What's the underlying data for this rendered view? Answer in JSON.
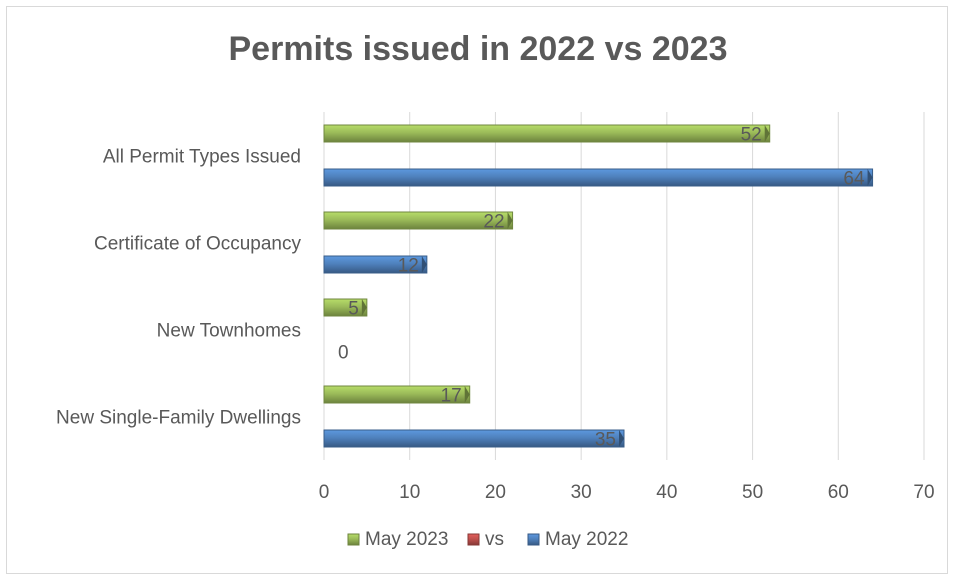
{
  "chart_data": {
    "type": "bar",
    "orientation": "horizontal",
    "title": "Permits issued in 2022 vs 2023",
    "categories": [
      "All Permit Types Issued",
      "Certificate of Occupancy",
      "New Townhomes",
      "New Single-Family Dwellings"
    ],
    "series": [
      {
        "name": "May 2023",
        "color": "#9bbb59",
        "values": [
          52,
          22,
          5,
          17
        ]
      },
      {
        "name": "vs",
        "color": "#c0504d",
        "values": [
          null,
          null,
          null,
          null
        ]
      },
      {
        "name": "May 2022",
        "color": "#4f81bd",
        "values": [
          64,
          12,
          0,
          35
        ]
      }
    ],
    "xlim": [
      0,
      70
    ],
    "xticks": [
      "0",
      "10",
      "20",
      "30",
      "40",
      "50",
      "60",
      "70"
    ],
    "grid": true,
    "legend_position": "bottom",
    "data_labels": true
  }
}
